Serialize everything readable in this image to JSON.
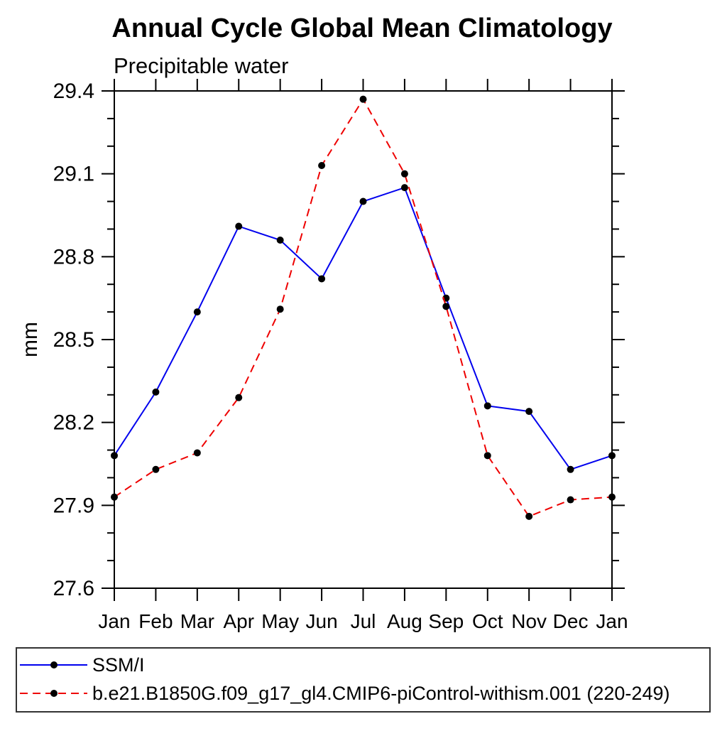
{
  "title": "Annual Cycle Global Mean Climatology",
  "subtitle": "Precipitable water",
  "ylabel": "mm",
  "chart_data": {
    "type": "line",
    "x_tick_labels": [
      "Jan",
      "Feb",
      "Mar",
      "Apr",
      "May",
      "Jun",
      "Jul",
      "Aug",
      "Sep",
      "Oct",
      "Nov",
      "Dec",
      "Jan"
    ],
    "y_tick_labels": [
      "27.6",
      "27.9",
      "28.2",
      "28.5",
      "28.8",
      "29.1",
      "29.4"
    ],
    "ylim": [
      27.6,
      29.4
    ],
    "y_major_step": 0.3,
    "y_minor_step": 0.1,
    "grid": false,
    "legend_position": "bottom",
    "marker": "black-circle",
    "marker_color": "#000000",
    "series": [
      {
        "name": "SSM/I",
        "color": "#0000ee",
        "line_style": "solid",
        "values": [
          28.08,
          28.31,
          28.6,
          28.91,
          28.86,
          28.72,
          29.0,
          29.05,
          28.65,
          28.26,
          28.24,
          28.03,
          28.08
        ]
      },
      {
        "name": "b.e21.B1850G.f09_g17_gl4.CMIP6-piControl-withism.001 (220-249)",
        "color": "#ee0000",
        "line_style": "dashed",
        "values": [
          27.93,
          28.03,
          28.09,
          28.29,
          28.61,
          29.13,
          29.37,
          29.1,
          28.62,
          28.08,
          27.86,
          27.92,
          27.93
        ]
      }
    ]
  },
  "colors": {
    "axis": "#000000",
    "text": "#000000",
    "legend_border": "#333333",
    "background": "#ffffff"
  }
}
